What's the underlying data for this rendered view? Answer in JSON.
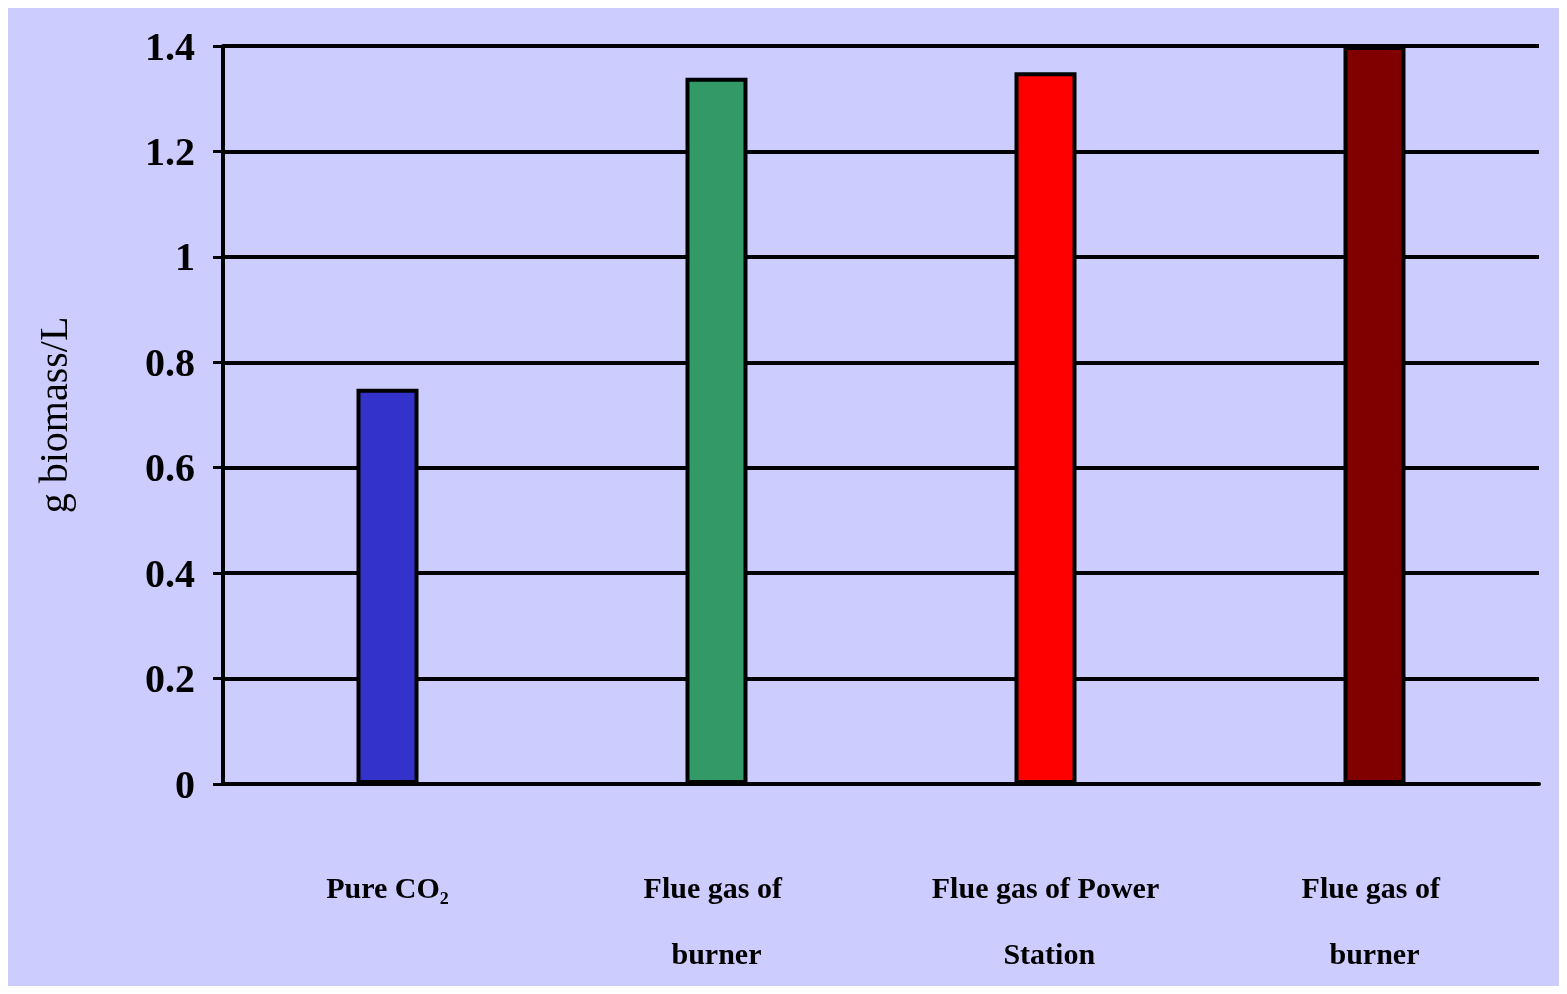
{
  "chart_data": {
    "type": "bar",
    "ylabel": "g biomass/L",
    "categories": [
      "Pure CO₂",
      "Flue gas of burner",
      "Flue gas of Power Station",
      "Flue gas of burner"
    ],
    "values": [
      0.75,
      1.34,
      1.35,
      1.4
    ],
    "colors": [
      "#3333cc",
      "#339966",
      "#ff0000",
      "#800000"
    ],
    "ylim": [
      0,
      1.4
    ],
    "yticks": [
      0,
      0.2,
      0.4,
      0.6,
      0.8,
      1,
      1.2,
      1.4
    ],
    "grid": "y"
  }
}
